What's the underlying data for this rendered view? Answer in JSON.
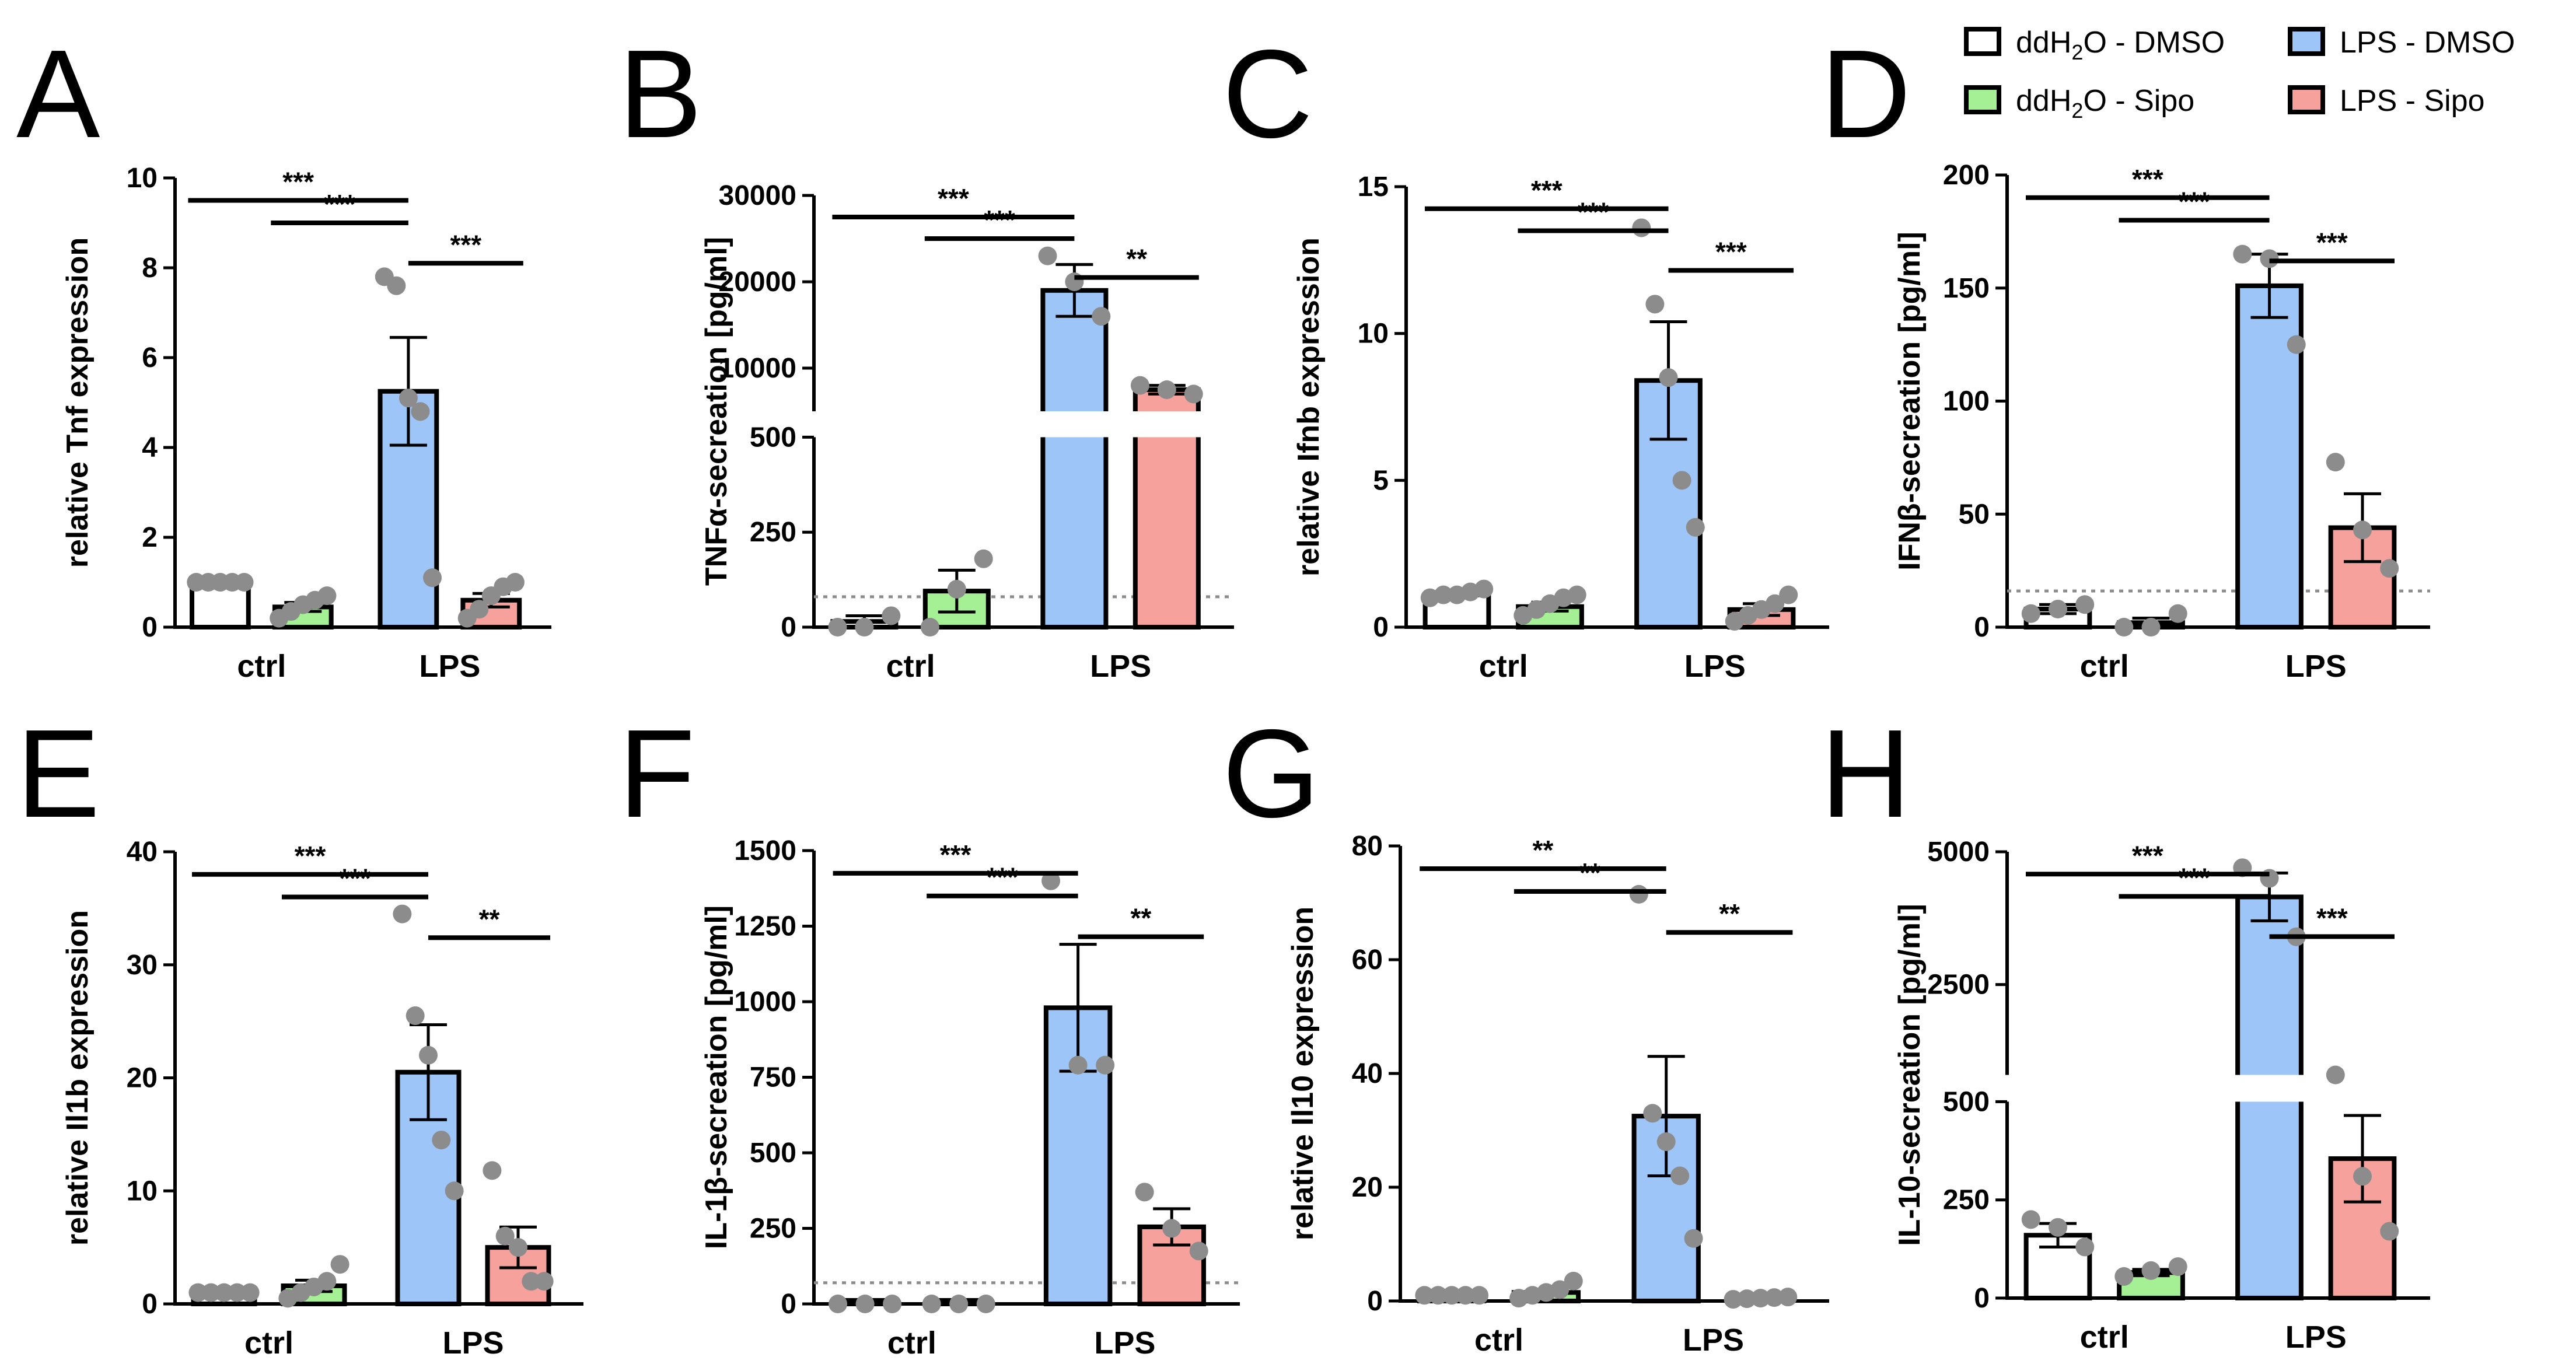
{
  "legend": {
    "items": [
      {
        "label_main": "ddH",
        "label_sub": "2",
        "label_rest": "O - DMSO",
        "color": "#ffffff"
      },
      {
        "label_main": "LPS - DMSO",
        "label_sub": "",
        "label_rest": "",
        "color": "#9ec5f7"
      },
      {
        "label_main": "ddH",
        "label_sub": "2",
        "label_rest": "O - Sipo",
        "color": "#a5ef95"
      },
      {
        "label_main": "LPS - Sipo",
        "label_sub": "",
        "label_rest": "",
        "color": "#f7a19d"
      }
    ]
  },
  "chart_data": [
    {
      "panel": "A",
      "type": "bar",
      "ylabel": "relative Tnf expression",
      "ylim": [
        0,
        10
      ],
      "yticks": [
        "0",
        "2",
        "4",
        "6",
        "8",
        "10"
      ],
      "categories": [
        "ctrl",
        "LPS"
      ],
      "series": [
        {
          "name": "ddH2O - DMSO",
          "group": "ctrl",
          "mean": 1.0,
          "sem": 0.0,
          "points": [
            1.0,
            1.0,
            1.0,
            1.0,
            1.0
          ]
        },
        {
          "name": "ddH2O - Sipo",
          "group": "ctrl",
          "mean": 0.45,
          "sem": 0.1,
          "points": [
            0.2,
            0.35,
            0.5,
            0.6,
            0.7
          ]
        },
        {
          "name": "LPS - DMSO",
          "group": "LPS",
          "mean": 5.25,
          "sem": 1.2,
          "points": [
            7.8,
            7.6,
            5.1,
            4.8,
            1.1
          ]
        },
        {
          "name": "LPS - Sipo",
          "group": "LPS",
          "mean": 0.6,
          "sem": 0.15,
          "points": [
            0.2,
            0.4,
            0.7,
            0.9,
            1.0
          ]
        }
      ],
      "significance": [
        {
          "from": 0,
          "to": 2,
          "label": "***"
        },
        {
          "from": 1,
          "to": 2,
          "label": "***"
        },
        {
          "from": 2,
          "to": 3,
          "label": "***"
        }
      ]
    },
    {
      "panel": "B",
      "type": "bar",
      "ylabel": "TNFα-secreation [pg/ml]",
      "axis_break": {
        "lower": [
          0,
          500
        ],
        "upper": [
          5000,
          30000
        ]
      },
      "yticks": [
        "0",
        "250",
        "500",
        "10000",
        "20000",
        "30000"
      ],
      "categories": [
        "ctrl",
        "LPS"
      ],
      "detection_limit": 80,
      "series": [
        {
          "name": "ddH2O - DMSO",
          "group": "ctrl",
          "mean": 15,
          "sem": 15,
          "points": [
            0,
            0,
            30
          ]
        },
        {
          "name": "ddH2O - Sipo",
          "group": "ctrl",
          "mean": 95,
          "sem": 55,
          "points": [
            0,
            100,
            180
          ]
        },
        {
          "name": "LPS - DMSO",
          "group": "LPS",
          "mean": 19000,
          "sem": 3000,
          "points": [
            23000,
            20000,
            16000
          ]
        },
        {
          "name": "LPS - Sipo",
          "group": "LPS",
          "mean": 7500,
          "sem": 500,
          "points": [
            8000,
            7500,
            7000
          ]
        }
      ],
      "significance": [
        {
          "from": 0,
          "to": 2,
          "label": "***"
        },
        {
          "from": 1,
          "to": 2,
          "label": "***"
        },
        {
          "from": 2,
          "to": 3,
          "label": "**"
        }
      ]
    },
    {
      "panel": "C",
      "type": "bar",
      "ylabel": "relative Ifnb expression",
      "ylim": [
        0,
        15
      ],
      "yticks": [
        "0",
        "5",
        "10",
        "15"
      ],
      "categories": [
        "ctrl",
        "LPS"
      ],
      "series": [
        {
          "name": "ddH2O - DMSO",
          "group": "ctrl",
          "mean": 1.1,
          "sem": 0.1,
          "points": [
            1.0,
            1.1,
            1.1,
            1.2,
            1.3
          ]
        },
        {
          "name": "ddH2O - Sipo",
          "group": "ctrl",
          "mean": 0.7,
          "sem": 0.15,
          "points": [
            0.4,
            0.6,
            0.8,
            1.0,
            1.1
          ]
        },
        {
          "name": "LPS - DMSO",
          "group": "LPS",
          "mean": 8.4,
          "sem": 2.0,
          "points": [
            13.6,
            11.0,
            8.5,
            5.0,
            3.4
          ]
        },
        {
          "name": "LPS - Sipo",
          "group": "LPS",
          "mean": 0.6,
          "sem": 0.2,
          "points": [
            0.2,
            0.4,
            0.6,
            0.8,
            1.1
          ]
        }
      ],
      "significance": [
        {
          "from": 0,
          "to": 2,
          "label": "***"
        },
        {
          "from": 1,
          "to": 2,
          "label": "***"
        },
        {
          "from": 2,
          "to": 3,
          "label": "***"
        }
      ]
    },
    {
      "panel": "D",
      "type": "bar",
      "ylabel": "IFNβ-secreation [pg/ml]",
      "ylim": [
        0,
        200
      ],
      "yticks": [
        "0",
        "50",
        "100",
        "150",
        "200"
      ],
      "categories": [
        "ctrl",
        "LPS"
      ],
      "detection_limit": 16,
      "series": [
        {
          "name": "ddH2O - DMSO",
          "group": "ctrl",
          "mean": 8,
          "sem": 2,
          "points": [
            6,
            8,
            10
          ]
        },
        {
          "name": "ddH2O - Sipo",
          "group": "ctrl",
          "mean": 2,
          "sem": 2,
          "points": [
            0,
            0,
            6
          ]
        },
        {
          "name": "LPS - DMSO",
          "group": "LPS",
          "mean": 151,
          "sem": 14,
          "points": [
            165,
            163,
            125
          ]
        },
        {
          "name": "LPS - Sipo",
          "group": "LPS",
          "mean": 44,
          "sem": 15,
          "points": [
            73,
            43,
            26
          ]
        }
      ],
      "significance": [
        {
          "from": 0,
          "to": 2,
          "label": "***"
        },
        {
          "from": 1,
          "to": 2,
          "label": "***"
        },
        {
          "from": 2,
          "to": 3,
          "label": "***"
        }
      ]
    },
    {
      "panel": "E",
      "type": "bar",
      "ylabel": "relative Il1b expression",
      "ylim": [
        0,
        40
      ],
      "yticks": [
        "0",
        "10",
        "20",
        "30",
        "40"
      ],
      "categories": [
        "ctrl",
        "LPS"
      ],
      "series": [
        {
          "name": "ddH2O - DMSO",
          "group": "ctrl",
          "mean": 1.0,
          "sem": 0.0,
          "points": [
            1.0,
            1.0,
            1.0,
            1.0,
            1.0
          ]
        },
        {
          "name": "ddH2O - Sipo",
          "group": "ctrl",
          "mean": 1.6,
          "sem": 0.5,
          "points": [
            0.5,
            1.0,
            1.5,
            2.0,
            3.5
          ]
        },
        {
          "name": "LPS - DMSO",
          "group": "LPS",
          "mean": 20.5,
          "sem": 4.2,
          "points": [
            34.5,
            25.5,
            22.0,
            14.5,
            10.0
          ]
        },
        {
          "name": "LPS - Sipo",
          "group": "LPS",
          "mean": 5.0,
          "sem": 1.8,
          "points": [
            11.8,
            6.0,
            5.0,
            2.0,
            2.0
          ]
        }
      ],
      "significance": [
        {
          "from": 0,
          "to": 2,
          "label": "***"
        },
        {
          "from": 1,
          "to": 2,
          "label": "***"
        },
        {
          "from": 2,
          "to": 3,
          "label": "**"
        }
      ]
    },
    {
      "panel": "F",
      "type": "bar",
      "ylabel": "IL-1β-secreation [pg/ml]",
      "ylim": [
        0,
        1500
      ],
      "yticks": [
        "0",
        "250",
        "500",
        "750",
        "1000",
        "1250",
        "1500"
      ],
      "categories": [
        "ctrl",
        "LPS"
      ],
      "detection_limit": 70,
      "series": [
        {
          "name": "ddH2O - DMSO",
          "group": "ctrl",
          "mean": 0,
          "sem": 0,
          "points": [
            0,
            0,
            0
          ]
        },
        {
          "name": "ddH2O - Sipo",
          "group": "ctrl",
          "mean": 0,
          "sem": 0,
          "points": [
            0,
            0,
            0
          ]
        },
        {
          "name": "LPS - DMSO",
          "group": "LPS",
          "mean": 980,
          "sem": 210,
          "points": [
            1400,
            790,
            790
          ]
        },
        {
          "name": "LPS - Sipo",
          "group": "LPS",
          "mean": 255,
          "sem": 60,
          "points": [
            370,
            250,
            175
          ]
        }
      ],
      "significance": [
        {
          "from": 0,
          "to": 2,
          "label": "***"
        },
        {
          "from": 1,
          "to": 2,
          "label": "***"
        },
        {
          "from": 2,
          "to": 3,
          "label": "**"
        }
      ]
    },
    {
      "panel": "G",
      "type": "bar",
      "ylabel": "relative Il10 expression",
      "ylim": [
        0,
        80
      ],
      "yticks": [
        "0",
        "20",
        "40",
        "60",
        "80"
      ],
      "categories": [
        "ctrl",
        "LPS"
      ],
      "series": [
        {
          "name": "ddH2O - DMSO",
          "group": "ctrl",
          "mean": 1.0,
          "sem": 0.0,
          "points": [
            1.0,
            1.0,
            1.0,
            1.0,
            1.0
          ]
        },
        {
          "name": "ddH2O - Sipo",
          "group": "ctrl",
          "mean": 1.5,
          "sem": 0.5,
          "points": [
            0.5,
            1.0,
            1.5,
            2.0,
            3.5
          ]
        },
        {
          "name": "LPS - DMSO",
          "group": "LPS",
          "mean": 32.5,
          "sem": 10.5,
          "points": [
            71.5,
            33.0,
            28.0,
            22.0,
            11.0
          ]
        },
        {
          "name": "LPS - Sipo",
          "group": "LPS",
          "mean": 0.5,
          "sem": 0.1,
          "points": [
            0.3,
            0.4,
            0.5,
            0.6,
            0.7
          ]
        }
      ],
      "significance": [
        {
          "from": 0,
          "to": 2,
          "label": "**"
        },
        {
          "from": 1,
          "to": 2,
          "label": "**"
        },
        {
          "from": 2,
          "to": 3,
          "label": "**"
        }
      ]
    },
    {
      "panel": "H",
      "type": "bar",
      "ylabel": "IL-10-secreation [pg/ml]",
      "axis_break": {
        "lower": [
          0,
          500
        ],
        "upper": [
          800,
          5000
        ]
      },
      "yticks": [
        "0",
        "250",
        "500",
        "2500",
        "5000"
      ],
      "categories": [
        "ctrl",
        "LPS"
      ],
      "series": [
        {
          "name": "ddH2O - DMSO",
          "group": "ctrl",
          "mean": 160,
          "sem": 30,
          "points": [
            200,
            180,
            130
          ]
        },
        {
          "name": "ddH2O - Sipo",
          "group": "ctrl",
          "mean": 65,
          "sem": 8,
          "points": [
            55,
            70,
            80
          ]
        },
        {
          "name": "LPS - DMSO",
          "group": "LPS",
          "mean": 4150,
          "sem": 450,
          "points": [
            4700,
            4500,
            3400
          ]
        },
        {
          "name": "LPS - Sipo",
          "group": "LPS",
          "mean": 355,
          "sem": 110,
          "points": [
            570,
            310,
            170
          ]
        }
      ],
      "significance": [
        {
          "from": 0,
          "to": 2,
          "label": "***"
        },
        {
          "from": 1,
          "to": 2,
          "label": "***"
        },
        {
          "from": 2,
          "to": 3,
          "label": "***"
        }
      ]
    }
  ]
}
